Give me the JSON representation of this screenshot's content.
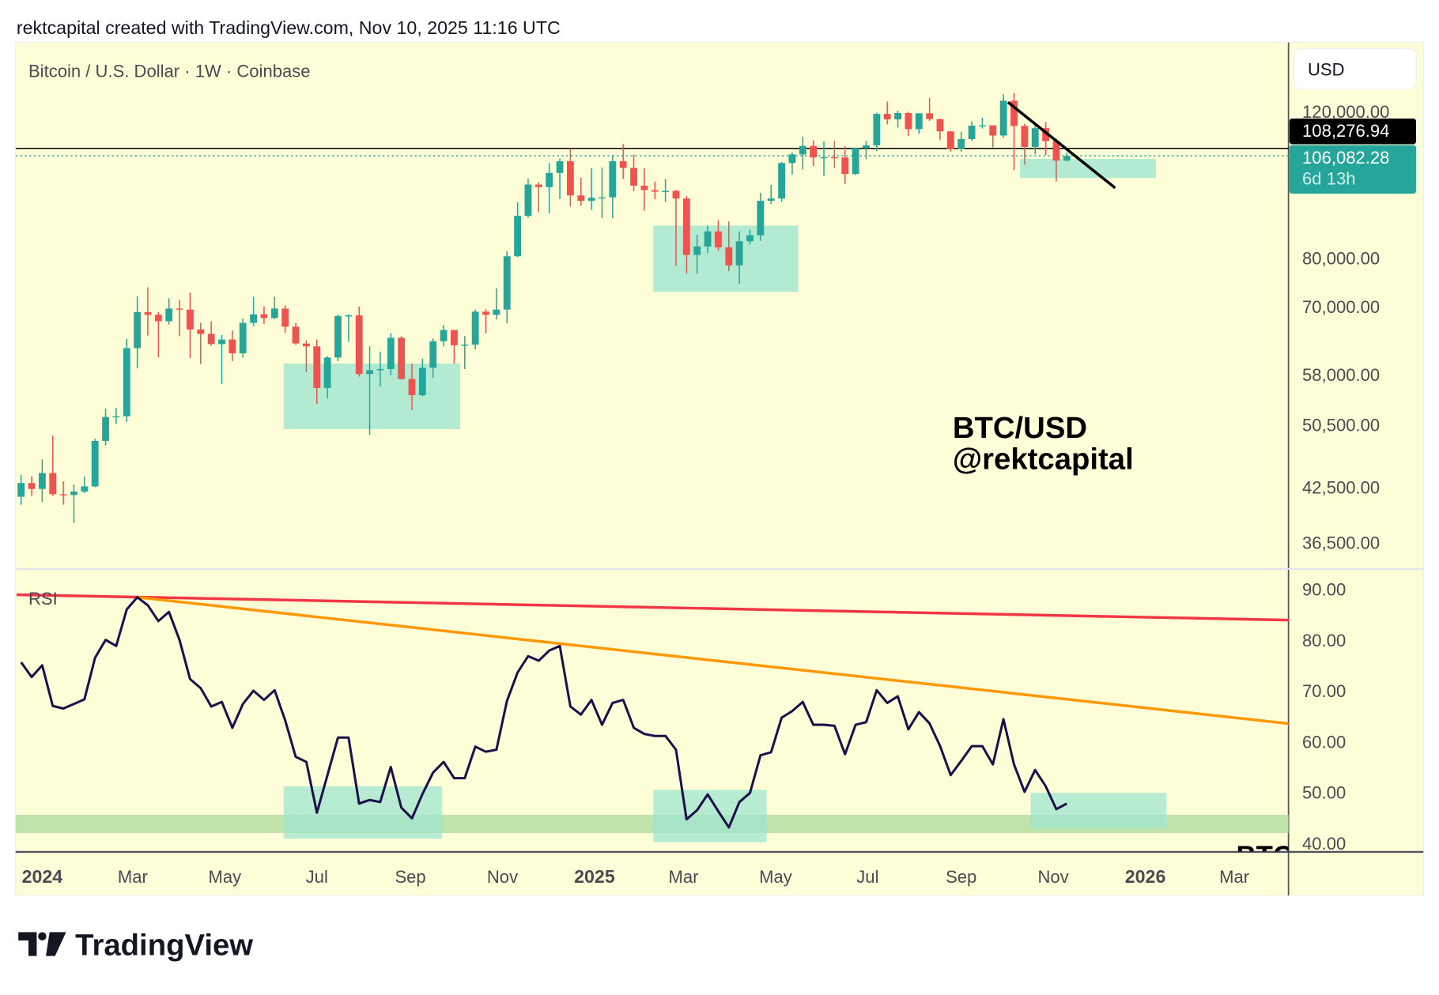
{
  "header": {
    "caption": "rektcapital created with TradingView.com, Nov 10, 2025 11:16 UTC"
  },
  "chart": {
    "symbol_label": "Bitcoin / U.S. Dollar · 1W · Coinbase",
    "currency_button": "USD",
    "watermark_line1": "BTC/USD",
    "watermark_line2": "@rektcapital",
    "clipped_text": "BTC",
    "rsi_label": "RSI",
    "last_close_label": "108,276.94",
    "current_price_label": "106,082.28",
    "countdown_label": "6d 13h",
    "brand": "TradingView"
  },
  "colors": {
    "background": "#fdfed8",
    "up": "#26a69a",
    "down": "#ef5350",
    "zone": "#9fe6d0",
    "rsi_line": "#1e0f4a",
    "resistance_red": "#f23645",
    "resistance_orange": "#ff9800",
    "support_band": "#bfe3a8"
  },
  "chart_data": [
    {
      "type": "candlestick",
      "title": "Bitcoin / U.S. Dollar · 1W · Coinbase",
      "interval": "1W",
      "yscale": "log",
      "y_ticks": [
        "120,000.00",
        "80,000.00",
        "70,000.00",
        "58,000.00",
        "50,500.00",
        "42,500.00",
        "36,500.00"
      ],
      "y_tick_values": [
        120000,
        80000,
        70000,
        58000,
        50500,
        42500,
        36500
      ],
      "x_ticks": [
        {
          "label": "2024",
          "date": "2024-01-01",
          "bold": true
        },
        {
          "label": "Mar",
          "date": "2024-03-01"
        },
        {
          "label": "May",
          "date": "2024-05-01"
        },
        {
          "label": "Jul",
          "date": "2024-07-01"
        },
        {
          "label": "Sep",
          "date": "2024-09-01"
        },
        {
          "label": "Nov",
          "date": "2024-11-01"
        },
        {
          "label": "2025",
          "date": "2025-01-01",
          "bold": true
        },
        {
          "label": "Mar",
          "date": "2025-03-01"
        },
        {
          "label": "May",
          "date": "2025-05-01"
        },
        {
          "label": "Jul",
          "date": "2025-07-01"
        },
        {
          "label": "Sep",
          "date": "2025-09-01"
        },
        {
          "label": "Nov",
          "date": "2025-11-01"
        },
        {
          "label": "2026",
          "date": "2026-01-01",
          "bold": true
        },
        {
          "label": "Mar",
          "date": "2026-03-01"
        }
      ],
      "last_close": 108276.94,
      "current_price": 106082.28,
      "candles_columns": [
        "date",
        "open",
        "high",
        "low",
        "close"
      ],
      "candles": [
        [
          "2023-12-18",
          41400,
          44000,
          40500,
          43000
        ],
        [
          "2023-12-25",
          43000,
          43800,
          41500,
          42300
        ],
        [
          "2024-01-01",
          42300,
          45900,
          40800,
          44200
        ],
        [
          "2024-01-08",
          44200,
          49000,
          41500,
          41700
        ],
        [
          "2024-01-15",
          41700,
          43200,
          40500,
          41600
        ],
        [
          "2024-01-22",
          41600,
          42800,
          38500,
          42000
        ],
        [
          "2024-01-29",
          42000,
          43800,
          41800,
          42600
        ],
        [
          "2024-02-05",
          42600,
          48600,
          42500,
          48300
        ],
        [
          "2024-02-12",
          48300,
          52800,
          47700,
          51600
        ],
        [
          "2024-02-19",
          51600,
          52900,
          50600,
          51700
        ],
        [
          "2024-02-26",
          51700,
          64000,
          50900,
          62400
        ],
        [
          "2024-03-04",
          62400,
          72000,
          59000,
          68900
        ],
        [
          "2024-03-11",
          68900,
          73800,
          64600,
          68400
        ],
        [
          "2024-03-18",
          68400,
          68900,
          60800,
          67200
        ],
        [
          "2024-03-25",
          67200,
          71600,
          66600,
          69600
        ],
        [
          "2024-04-01",
          69600,
          71300,
          64500,
          69400
        ],
        [
          "2024-04-08",
          69400,
          72700,
          60700,
          65700
        ],
        [
          "2024-04-15",
          65700,
          66900,
          59700,
          64900
        ],
        [
          "2024-04-22",
          64900,
          67200,
          62800,
          63100
        ],
        [
          "2024-04-29",
          63100,
          64700,
          56500,
          63900
        ],
        [
          "2024-05-06",
          63900,
          65500,
          60200,
          61500
        ],
        [
          "2024-05-13",
          61500,
          67700,
          60800,
          66900
        ],
        [
          "2024-05-20",
          66900,
          71900,
          66300,
          68500
        ],
        [
          "2024-05-27",
          68500,
          70000,
          66700,
          67800
        ],
        [
          "2024-06-03",
          67800,
          71900,
          67600,
          69600
        ],
        [
          "2024-06-10",
          69600,
          70200,
          65100,
          66200
        ],
        [
          "2024-06-17",
          66200,
          66900,
          63000,
          63200
        ],
        [
          "2024-06-24",
          63200,
          63800,
          58400,
          62700
        ],
        [
          "2024-07-01",
          62700,
          63900,
          53500,
          55900
        ],
        [
          "2024-07-08",
          55900,
          61000,
          54300,
          60800
        ],
        [
          "2024-07-15",
          60800,
          68400,
          60200,
          68200
        ],
        [
          "2024-07-22",
          68200,
          68500,
          63500,
          68300
        ],
        [
          "2024-07-29",
          68300,
          70000,
          57700,
          58100
        ],
        [
          "2024-08-05",
          58100,
          62700,
          49100,
          58700
        ],
        [
          "2024-08-12",
          58700,
          61800,
          56100,
          58900
        ],
        [
          "2024-08-19",
          58900,
          65000,
          57900,
          64200
        ],
        [
          "2024-08-26",
          64200,
          64500,
          57200,
          57300
        ],
        [
          "2024-09-02",
          57300,
          59800,
          52600,
          54800
        ],
        [
          "2024-09-09",
          54800,
          60600,
          54600,
          59100
        ],
        [
          "2024-09-16",
          59100,
          64100,
          57500,
          63600
        ],
        [
          "2024-09-23",
          63600,
          66500,
          62700,
          65600
        ],
        [
          "2024-09-30",
          65600,
          65600,
          59800,
          62900
        ],
        [
          "2024-10-07",
          62900,
          64500,
          58900,
          63000
        ],
        [
          "2024-10-14",
          63000,
          69400,
          62200,
          69000
        ],
        [
          "2024-10-21",
          69000,
          69500,
          65000,
          68400
        ],
        [
          "2024-10-28",
          68400,
          73600,
          67500,
          69400
        ],
        [
          "2024-11-04",
          69400,
          81500,
          66800,
          80400
        ],
        [
          "2024-11-11",
          80400,
          93300,
          80200,
          89900
        ],
        [
          "2024-11-18",
          89900,
          99600,
          89400,
          98000
        ],
        [
          "2024-11-25",
          98000,
          98700,
          90800,
          97300
        ],
        [
          "2024-12-02",
          97300,
          104000,
          90500,
          101200
        ],
        [
          "2024-12-09",
          101200,
          105300,
          94200,
          104500
        ],
        [
          "2024-12-16",
          104500,
          108300,
          92200,
          95100
        ],
        [
          "2024-12-23",
          95100,
          99900,
          92500,
          93700
        ],
        [
          "2024-12-30",
          93700,
          102500,
          91400,
          94500
        ],
        [
          "2025-01-06",
          94500,
          102700,
          89300,
          94600
        ],
        [
          "2025-01-13",
          94600,
          106400,
          89300,
          104500
        ],
        [
          "2025-01-20",
          104500,
          109600,
          99500,
          102600
        ],
        [
          "2025-01-27",
          102600,
          106500,
          96200,
          97700
        ],
        [
          "2025-02-03",
          97700,
          102500,
          91200,
          96500
        ],
        [
          "2025-02-10",
          96500,
          98800,
          94100,
          96100
        ],
        [
          "2025-02-17",
          96100,
          99500,
          93400,
          96300
        ],
        [
          "2025-02-24",
          96300,
          96500,
          78300,
          94300
        ],
        [
          "2025-03-03",
          94300,
          95000,
          76600,
          80700
        ],
        [
          "2025-03-10",
          80700,
          85300,
          76600,
          82600
        ],
        [
          "2025-03-17",
          82600,
          87500,
          81100,
          86100
        ],
        [
          "2025-03-24",
          86100,
          88800,
          81600,
          82400
        ],
        [
          "2025-03-31",
          82400,
          88500,
          77200,
          78400
        ],
        [
          "2025-04-07",
          78400,
          86100,
          74500,
          83800
        ],
        [
          "2025-04-14",
          83800,
          86500,
          83100,
          85200
        ],
        [
          "2025-04-21",
          85200,
          95800,
          83900,
          93700
        ],
        [
          "2025-04-28",
          93700,
          97900,
          92800,
          94300
        ],
        [
          "2025-05-05",
          94300,
          104300,
          93400,
          104000
        ],
        [
          "2025-05-12",
          104000,
          107100,
          100800,
          106500
        ],
        [
          "2025-05-19",
          106500,
          111900,
          102100,
          109000
        ],
        [
          "2025-05-26",
          109000,
          110700,
          103100,
          105600
        ],
        [
          "2025-06-02",
          105600,
          110400,
          100400,
          105700
        ],
        [
          "2025-06-09",
          105700,
          110600,
          102600,
          105600
        ],
        [
          "2025-06-16",
          105600,
          108900,
          98200,
          100900
        ],
        [
          "2025-06-23",
          100900,
          108500,
          100600,
          108400
        ],
        [
          "2025-06-30",
          108400,
          110600,
          105100,
          109200
        ],
        [
          "2025-07-07",
          109200,
          119500,
          107500,
          119100
        ],
        [
          "2025-07-14",
          119100,
          123200,
          115700,
          117300
        ],
        [
          "2025-07-21",
          117300,
          120200,
          114700,
          119400
        ],
        [
          "2025-07-28",
          119400,
          119800,
          112000,
          114200
        ],
        [
          "2025-08-04",
          114200,
          119300,
          112700,
          119300
        ],
        [
          "2025-08-11",
          119300,
          124500,
          116800,
          117400
        ],
        [
          "2025-08-18",
          117400,
          117600,
          110800,
          113500
        ],
        [
          "2025-08-25",
          113500,
          113600,
          107300,
          108200
        ],
        [
          "2025-09-01",
          108200,
          113400,
          107300,
          111100
        ],
        [
          "2025-09-08",
          111100,
          116700,
          110600,
          115300
        ],
        [
          "2025-09-15",
          115300,
          117900,
          114400,
          115400
        ],
        [
          "2025-09-22",
          115400,
          115400,
          108600,
          112200
        ],
        [
          "2025-09-29",
          112200,
          125700,
          111600,
          123500
        ],
        [
          "2025-10-06",
          123500,
          126200,
          102000,
          115200
        ],
        [
          "2025-10-13",
          115200,
          115900,
          103500,
          108700
        ],
        [
          "2025-10-20",
          108700,
          116000,
          106600,
          114500
        ],
        [
          "2025-10-27",
          114500,
          116400,
          106300,
          110500
        ],
        [
          "2025-11-03",
          110500,
          111200,
          98900,
          104700
        ],
        [
          "2025-11-10",
          104700,
          107000,
          104500,
          106082.28
        ]
      ],
      "zones": [
        {
          "from": "2024-06-09",
          "to": "2024-10-04",
          "low": 49900,
          "high": 59800
        },
        {
          "from": "2025-02-09",
          "to": "2025-05-16",
          "low": 72900,
          "high": 87500
        },
        {
          "from": "2025-10-10",
          "to": "2026-01-08",
          "low": 99800,
          "high": 105200
        }
      ],
      "trendline": {
        "from": [
          "2025-10-02",
          123000
        ],
        "to": [
          "2025-12-12",
          97100
        ]
      }
    },
    {
      "type": "line",
      "title": "RSI",
      "y_ticks": [
        "90.00",
        "80.00",
        "70.00",
        "60.00",
        "50.00",
        "40.00"
      ],
      "y_tick_values": [
        90,
        80,
        70,
        60,
        50,
        40
      ],
      "rsi_start": "2023-12-18",
      "rsi_interval_days": 7,
      "rsi": [
        75.6,
        72.7,
        75,
        67,
        66.5,
        67.4,
        68.3,
        76.5,
        80,
        78.8,
        86,
        88.4,
        86.8,
        83.7,
        85.5,
        80,
        72.3,
        70.5,
        66.9,
        67.8,
        62.7,
        67.4,
        70,
        68.2,
        70.1,
        64.2,
        57,
        56,
        46,
        53.4,
        60.8,
        60.8,
        47.8,
        48.5,
        48.1,
        55,
        47,
        44.9,
        49.7,
        53.9,
        56,
        52.8,
        52.8,
        59,
        58,
        58.4,
        68,
        73.6,
        76.8,
        75.9,
        77.9,
        78.8,
        66.9,
        65.3,
        68.2,
        63.3,
        67.6,
        68.2,
        62.7,
        61.5,
        61.1,
        61.1,
        58.4,
        44.7,
        46.5,
        49.6,
        46.3,
        43.1,
        48.1,
        49.9,
        57.3,
        57.9,
        64.7,
        66,
        67.8,
        63.3,
        63.3,
        63.1,
        57.5,
        63.3,
        63.8,
        70.1,
        67.6,
        68.9,
        62.4,
        65.8,
        63.6,
        59.1,
        53.4,
        56.2,
        59.1,
        59.1,
        55.5,
        64.4,
        55.5,
        50.1,
        54.4,
        51.2,
        46.7,
        47.8
      ],
      "lines": [
        {
          "color": "red",
          "from": [
            "2023-12-15",
            88.9
          ],
          "to": [
            "2026-04-07",
            83.9
          ]
        },
        {
          "color": "orange",
          "from": [
            "2024-03-04",
            88.4
          ],
          "to": [
            "2026-04-07",
            63.5
          ]
        }
      ],
      "zones": [
        {
          "from": "2024-06-09",
          "to": "2024-09-22",
          "low": 40.9,
          "high": 51.2
        },
        {
          "from": "2025-02-09",
          "to": "2025-04-25",
          "low": 40.2,
          "high": 50.5
        },
        {
          "from": "2025-10-17",
          "to": "2026-01-15",
          "low": 42.9,
          "high": 49.9
        }
      ],
      "support_band": {
        "low": 42.0,
        "high": 45.6
      }
    }
  ]
}
